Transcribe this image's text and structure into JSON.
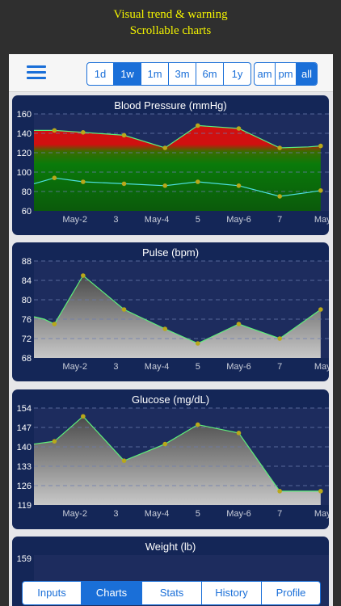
{
  "promo": {
    "line1": "Visual trend & warning",
    "line2": "Scrollable charts"
  },
  "toolbar": {
    "menu_icon": "hamburger-menu-icon",
    "ranges": [
      {
        "label": "1d",
        "active": false
      },
      {
        "label": "1w",
        "active": true
      },
      {
        "label": "1m",
        "active": false
      },
      {
        "label": "3m",
        "active": false
      },
      {
        "label": "6m",
        "active": false
      },
      {
        "label": "1y",
        "active": false
      }
    ],
    "periods": [
      {
        "label": "am",
        "active": false
      },
      {
        "label": "pm",
        "active": false
      },
      {
        "label": "all",
        "active": true
      }
    ]
  },
  "colors": {
    "accent": "#1a6fd8",
    "card_bg": "#142657",
    "line": "#5ef07a",
    "bp_low_line": "#4de0e0",
    "point": "#b8a81a",
    "warning": "#d01010",
    "ok": "#0a7a0a",
    "promo_text": "#f2f200"
  },
  "tabs": [
    {
      "label": "Inputs",
      "active": false
    },
    {
      "label": "Charts",
      "active": true
    },
    {
      "label": "Stats",
      "active": false
    },
    {
      "label": "History",
      "active": false
    },
    {
      "label": "Profile",
      "active": false
    }
  ],
  "chart_data": [
    {
      "type": "area",
      "title": "Blood Pressure (mmHg)",
      "xlabel": "",
      "ylabel": "",
      "ylim": [
        60,
        160
      ],
      "yticks": [
        60,
        80,
        100,
        120,
        140,
        160
      ],
      "xtick_labels": [
        "May-2",
        "3",
        "May-4",
        "5",
        "May-6",
        "7",
        "May"
      ],
      "xtick_positions": [
        2,
        3,
        4,
        5,
        6,
        7,
        8
      ],
      "xlim": [
        1,
        8.2
      ],
      "grid": true,
      "series": [
        {
          "name": "",
          "x": [
            1.0,
            1.5,
            2.2,
            3.2,
            4.2,
            5.0,
            6.0,
            7.0,
            7.7,
            8.0
          ],
          "values": [
            143,
            143,
            141,
            138,
            125,
            148,
            145,
            125,
            126,
            127
          ]
        },
        {
          "name": "",
          "x": [
            1.0,
            1.5,
            2.2,
            3.2,
            4.2,
            5.0,
            6.0,
            7.0,
            7.7,
            8.0
          ],
          "values": [
            88,
            94,
            90,
            88,
            86,
            90,
            86,
            75,
            79,
            81
          ]
        }
      ]
    },
    {
      "type": "area",
      "title": "Pulse (bpm)",
      "xlabel": "",
      "ylabel": "",
      "ylim": [
        68,
        88
      ],
      "yticks": [
        68,
        72,
        76,
        80,
        84,
        88
      ],
      "xtick_labels": [
        "May-2",
        "3",
        "May-4",
        "5",
        "May-6",
        "7",
        "May"
      ],
      "xtick_positions": [
        2,
        3,
        4,
        5,
        6,
        7,
        8
      ],
      "xlim": [
        1,
        8.2
      ],
      "grid": true,
      "series": [
        {
          "name": "",
          "x": [
            1.0,
            1.25,
            1.5,
            2.2,
            3.2,
            4.2,
            5.0,
            6.0,
            7.0,
            8.0
          ],
          "values": [
            76.5,
            76,
            75,
            85,
            78,
            74,
            71,
            75,
            72,
            78
          ]
        }
      ]
    },
    {
      "type": "area",
      "title": "Glucose (mg/dL)",
      "xlabel": "",
      "ylabel": "",
      "ylim": [
        119,
        154
      ],
      "yticks": [
        119,
        126,
        133,
        140,
        147,
        154
      ],
      "xtick_labels": [
        "May-2",
        "3",
        "May-4",
        "5",
        "May-6",
        "7",
        "May"
      ],
      "xtick_positions": [
        2,
        3,
        4,
        5,
        6,
        7,
        8
      ],
      "xlim": [
        1,
        8.2
      ],
      "grid": true,
      "series": [
        {
          "name": "",
          "x": [
            1.0,
            1.5,
            2.2,
            3.2,
            4.2,
            5.0,
            6.0,
            7.0,
            8.0
          ],
          "values": [
            141,
            142,
            151,
            135,
            141,
            148,
            145,
            124,
            124
          ]
        }
      ]
    },
    {
      "type": "area",
      "title": "Weight (lb)",
      "xlabel": "",
      "ylabel": "",
      "yticks": [
        159
      ],
      "grid": true,
      "series": []
    }
  ]
}
